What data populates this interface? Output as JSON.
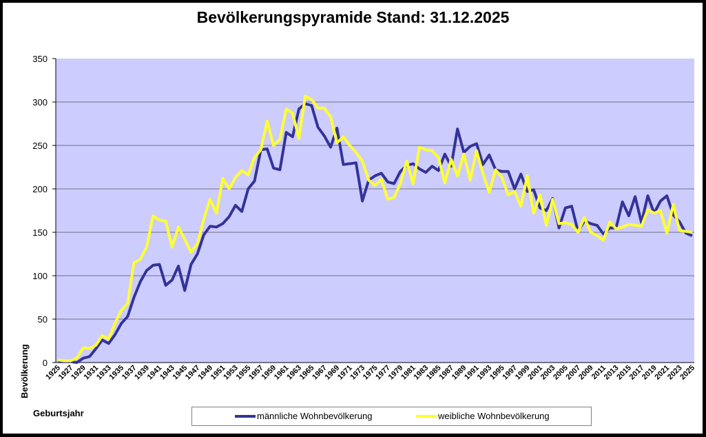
{
  "title": "Bevölkerungspyramide Stand: 31.12.2025",
  "legend": {
    "male_label": "männliche Wohnbevölkerung",
    "female_label": "weibliche Wohnbevölkerung"
  },
  "colors": {
    "plot_bg": "#CCCCFF",
    "male": "#333399",
    "female": "#FFFF33",
    "gridline": "#707080"
  },
  "chart_data": {
    "type": "line",
    "title": "Bevölkerungspyramide Stand: 31.12.2025",
    "xlabel": "Geburtsjahr",
    "ylabel": "Bevölkerung",
    "ylim": [
      0,
      350
    ],
    "yticks": [
      0,
      50,
      100,
      150,
      200,
      250,
      300,
      350
    ],
    "grid": true,
    "legend_position": "bottom",
    "x": [
      1925,
      1926,
      1927,
      1928,
      1929,
      1930,
      1931,
      1932,
      1933,
      1934,
      1935,
      1936,
      1937,
      1938,
      1939,
      1940,
      1941,
      1942,
      1943,
      1944,
      1945,
      1946,
      1947,
      1948,
      1949,
      1950,
      1951,
      1952,
      1953,
      1954,
      1955,
      1956,
      1957,
      1958,
      1959,
      1960,
      1961,
      1962,
      1963,
      1964,
      1965,
      1966,
      1967,
      1968,
      1969,
      1970,
      1971,
      1972,
      1973,
      1974,
      1975,
      1976,
      1977,
      1978,
      1979,
      1980,
      1981,
      1982,
      1983,
      1984,
      1985,
      1986,
      1987,
      1988,
      1989,
      1990,
      1991,
      1992,
      1993,
      1994,
      1995,
      1996,
      1997,
      1998,
      1999,
      2000,
      2001,
      2002,
      2003,
      2004,
      2005,
      2006,
      2007,
      2008,
      2009,
      2010,
      2011,
      2012,
      2013,
      2014,
      2015,
      2016,
      2017,
      2018,
      2019,
      2020,
      2021,
      2022,
      2023,
      2024,
      2025
    ],
    "xtick_labels": [
      "1925",
      "1927",
      "1929",
      "1931",
      "1933",
      "1935",
      "1937",
      "1939",
      "1941",
      "1943",
      "1945",
      "1947",
      "1949",
      "1951",
      "1953",
      "1955",
      "1957",
      "1959",
      "1961",
      "1963",
      "1965",
      "1967",
      "1969",
      "1971",
      "1973",
      "1975",
      "1977",
      "1979",
      "1981",
      "1983",
      "1985",
      "1987",
      "1989",
      "1991",
      "1993",
      "1995",
      "1997",
      "1999",
      "2001",
      "2003",
      "2005",
      "2007",
      "2009",
      "2011",
      "2013",
      "2015",
      "2017",
      "2019",
      "2021",
      "2023",
      "2025"
    ],
    "series": [
      {
        "name": "männliche Wohnbevölkerung",
        "color": "#333399",
        "values": [
          1,
          1,
          1,
          0,
          5,
          7,
          16,
          26,
          22,
          32,
          45,
          53,
          75,
          93,
          106,
          112,
          113,
          89,
          95,
          111,
          83,
          113,
          125,
          147,
          157,
          156,
          160,
          168,
          181,
          174,
          200,
          209,
          245,
          246,
          224,
          222,
          265,
          260,
          292,
          298,
          296,
          271,
          261,
          248,
          270,
          228,
          229,
          230,
          186,
          210,
          215,
          218,
          208,
          206,
          220,
          227,
          229,
          223,
          219,
          226,
          221,
          240,
          226,
          269,
          242,
          249,
          252,
          228,
          239,
          222,
          220,
          220,
          200,
          217,
          197,
          199,
          178,
          175,
          189,
          155,
          178,
          180,
          151,
          163,
          160,
          158,
          148,
          155,
          155,
          185,
          169,
          191,
          161,
          192,
          172,
          186,
          192,
          170,
          162,
          149,
          146
        ],
        "scale_hint": "approximate, read from pixels"
      },
      {
        "name": "weibliche Wohnbevölkerung",
        "color": "#FFFF33",
        "values": [
          3,
          2,
          2,
          5,
          17,
          16,
          20,
          31,
          27,
          45,
          60,
          68,
          115,
          119,
          133,
          169,
          164,
          163,
          133,
          156,
          142,
          127,
          137,
          165,
          188,
          172,
          212,
          200,
          213,
          221,
          216,
          236,
          245,
          278,
          250,
          257,
          292,
          287,
          258,
          307,
          303,
          293,
          293,
          283,
          253,
          260,
          250,
          242,
          232,
          210,
          204,
          211,
          188,
          190,
          206,
          232,
          206,
          248,
          245,
          244,
          236,
          207,
          234,
          215,
          240,
          210,
          244,
          218,
          196,
          222,
          213,
          193,
          197,
          180,
          215,
          172,
          193,
          158,
          188,
          160,
          161,
          159,
          150,
          167,
          150,
          146,
          141,
          162,
          154,
          156,
          159,
          158,
          157,
          176,
          172,
          175,
          149,
          182,
          152,
          151,
          150
        ]
      }
    ]
  }
}
